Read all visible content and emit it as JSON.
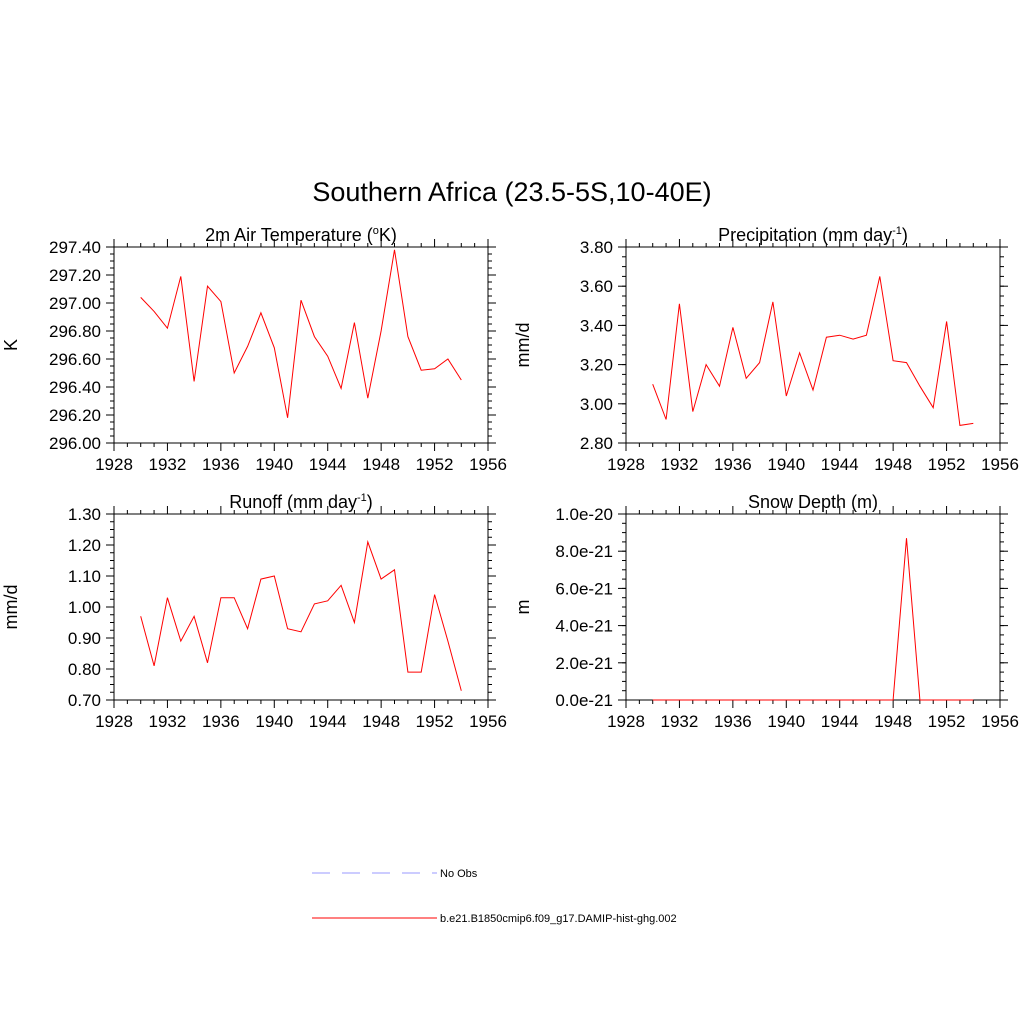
{
  "figure": {
    "title": "Southern Africa (23.5-5S,10-40E)"
  },
  "legend": {
    "entries": [
      {
        "label": "No Obs",
        "color": "#9999ff",
        "dashed": true
      },
      {
        "label": "b.e21.B1850cmip6.f09_g17.DAMIP-hist-ghg.002",
        "color": "#ff0000",
        "dashed": false
      }
    ]
  },
  "chart_data": [
    {
      "type": "line",
      "title": "2m Air Temperature (",
      "title_sup": "o",
      "title_after": "K)",
      "ylabel": "K",
      "xlim": [
        1928,
        1956
      ],
      "ylim": [
        296.0,
        297.4
      ],
      "xticks": [
        1928,
        1932,
        1936,
        1940,
        1944,
        1948,
        1952,
        1956
      ],
      "yticks": [
        "296.00",
        "296.20",
        "296.40",
        "296.60",
        "296.80",
        "297.00",
        "297.20",
        "297.40"
      ],
      "yminor": 0.05,
      "series": [
        {
          "color": "#ff0000",
          "x": [
            1930,
            1931,
            1932,
            1933,
            1934,
            1935,
            1936,
            1937,
            1938,
            1939,
            1940,
            1941,
            1942,
            1943,
            1944,
            1945,
            1946,
            1947,
            1948,
            1949,
            1950,
            1951,
            1952,
            1953,
            1954
          ],
          "values": [
            297.04,
            296.94,
            296.82,
            297.19,
            296.44,
            297.12,
            297.01,
            296.5,
            296.69,
            296.93,
            296.68,
            296.18,
            297.02,
            296.76,
            296.62,
            296.39,
            296.86,
            296.32,
            296.8,
            297.38,
            296.76,
            296.52,
            296.53,
            296.6,
            296.45
          ]
        }
      ]
    },
    {
      "type": "line",
      "title": "Precipitation (mm day",
      "title_sup": "-1",
      "title_after": ")",
      "ylabel": "mm/d",
      "xlim": [
        1928,
        1956
      ],
      "ylim": [
        2.8,
        3.8
      ],
      "xticks": [
        1928,
        1932,
        1936,
        1940,
        1944,
        1948,
        1952,
        1956
      ],
      "yticks": [
        "2.80",
        "3.00",
        "3.20",
        "3.40",
        "3.60",
        "3.80"
      ],
      "yminor": 0.05,
      "series": [
        {
          "color": "#ff0000",
          "x": [
            1930,
            1931,
            1932,
            1933,
            1934,
            1935,
            1936,
            1937,
            1938,
            1939,
            1940,
            1941,
            1942,
            1943,
            1944,
            1945,
            1946,
            1947,
            1948,
            1949,
            1950,
            1951,
            1952,
            1953,
            1954
          ],
          "values": [
            3.1,
            2.92,
            3.51,
            2.96,
            3.2,
            3.09,
            3.39,
            3.13,
            3.21,
            3.52,
            3.04,
            3.26,
            3.07,
            3.34,
            3.35,
            3.33,
            3.35,
            3.65,
            3.22,
            3.21,
            3.09,
            2.98,
            3.42,
            2.89,
            2.9
          ]
        }
      ]
    },
    {
      "type": "line",
      "title": "Runoff (mm day",
      "title_sup": "-1",
      "title_after": ")",
      "ylabel": "mm/d",
      "xlim": [
        1928,
        1956
      ],
      "ylim": [
        0.7,
        1.3
      ],
      "xticks": [
        1928,
        1932,
        1936,
        1940,
        1944,
        1948,
        1952,
        1956
      ],
      "yticks": [
        "0.70",
        "0.80",
        "0.90",
        "1.00",
        "1.10",
        "1.20",
        "1.30"
      ],
      "yminor": 0.025,
      "series": [
        {
          "color": "#ff0000",
          "x": [
            1930,
            1931,
            1932,
            1933,
            1934,
            1935,
            1936,
            1937,
            1938,
            1939,
            1940,
            1941,
            1942,
            1943,
            1944,
            1945,
            1946,
            1947,
            1948,
            1949,
            1950,
            1951,
            1952,
            1953,
            1954
          ],
          "values": [
            0.97,
            0.81,
            1.03,
            0.89,
            0.97,
            0.82,
            1.03,
            1.03,
            0.93,
            1.09,
            1.1,
            0.93,
            0.92,
            1.01,
            1.02,
            1.07,
            0.95,
            1.21,
            1.09,
            1.12,
            0.79,
            0.79,
            1.04,
            0.89,
            0.73
          ]
        }
      ]
    },
    {
      "type": "line",
      "title": "Snow Depth (m)",
      "title_sup": "",
      "title_after": "",
      "ylabel": "m",
      "xlim": [
        1928,
        1956
      ],
      "ylim": [
        0,
        1e-20
      ],
      "xticks": [
        1928,
        1932,
        1936,
        1940,
        1944,
        1948,
        1952,
        1956
      ],
      "yticks": [
        "0.0e-21",
        "2.0e-21",
        "4.0e-21",
        "6.0e-21",
        "8.0e-21",
        "1.0e-20"
      ],
      "yminor": 5e-22,
      "series": [
        {
          "color": "#ff0000",
          "x": [
            1930,
            1931,
            1932,
            1933,
            1934,
            1935,
            1936,
            1937,
            1938,
            1939,
            1940,
            1941,
            1942,
            1943,
            1944,
            1945,
            1946,
            1947,
            1948,
            1949,
            1950,
            1951,
            1952,
            1953,
            1954
          ],
          "values": [
            0,
            0,
            0,
            0,
            0,
            0,
            0,
            0,
            0,
            0,
            0,
            0,
            0,
            0,
            0,
            0,
            0,
            0,
            0,
            8.7e-21,
            0,
            0,
            0,
            0,
            0
          ]
        }
      ]
    }
  ]
}
